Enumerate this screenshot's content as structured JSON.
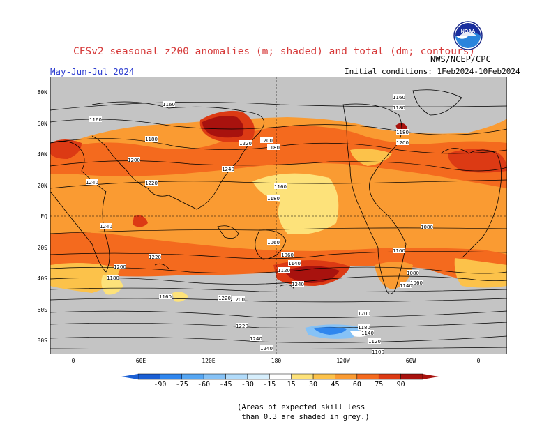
{
  "header": {
    "title": "CFSv2 seasonal z200 anomalies (m; shaded) and total (dm; contours)",
    "season": "May-Jun-Jul 2024",
    "initial_conditions": "Initial conditions: 1Feb2024-10Feb2024",
    "agency": "NWS/NCEP/CPC",
    "logo_text": "NOAA"
  },
  "map": {
    "lat_labels": [
      "80N",
      "60N",
      "40N",
      "20N",
      "EQ",
      "20S",
      "40S",
      "60S",
      "80S"
    ],
    "lon_labels": [
      "0",
      "60E",
      "120E",
      "180",
      "120W",
      "60W",
      "0"
    ],
    "contour_labels": [
      "1160",
      "1160",
      "1180",
      "1200",
      "1220",
      "1240",
      "1240",
      "1220",
      "1200",
      "1180",
      "1160",
      "1200",
      "1220",
      "1240",
      "1240",
      "1220",
      "1200",
      "1180",
      "1140",
      "1120",
      "1100",
      "1080",
      "1060",
      "1060",
      "1140",
      "1120",
      "1100",
      "1080",
      "1060",
      "1240",
      "1240",
      "1220",
      "1200",
      "1180",
      "1180",
      "1200",
      "1180",
      "1160",
      "1140",
      "1180",
      "1160"
    ],
    "skill_mask_color": "#c4c4c4"
  },
  "colorbar": {
    "labels": [
      "-90",
      "-75",
      "-60",
      "-45",
      "-30",
      "-15",
      "15",
      "30",
      "45",
      "60",
      "75",
      "90"
    ],
    "colors": [
      "#1a5fd4",
      "#2f86ee",
      "#56a6f2",
      "#86c2f6",
      "#b1dbfa",
      "#d6eefc",
      "#ffffff",
      "#fde27a",
      "#fcc24a",
      "#fa9b32",
      "#f46a1e",
      "#dc3a14",
      "#a8120e"
    ]
  },
  "footnote": {
    "line1": "(Areas of expected skill less",
    "line2": " than 0.3 are shaded in grey.)"
  }
}
